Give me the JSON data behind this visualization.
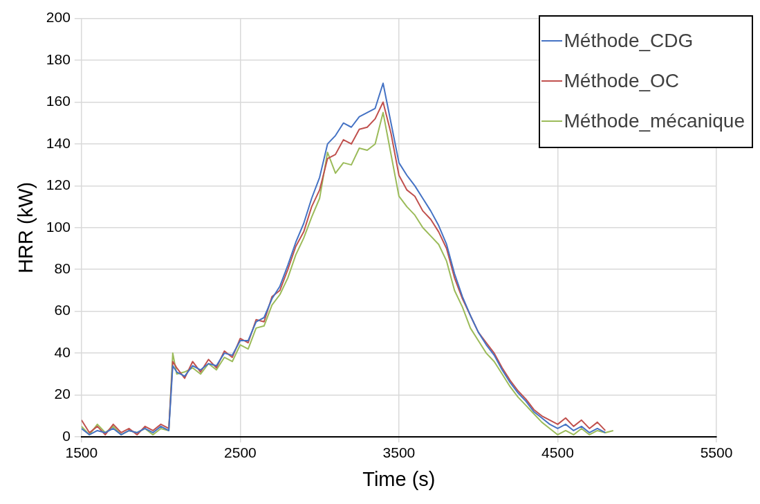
{
  "chart_data": {
    "type": "line",
    "xlabel": "Time (s)",
    "ylabel": "HRR (kW)",
    "x": [
      1500,
      1550,
      1600,
      1650,
      1700,
      1750,
      1800,
      1850,
      1900,
      1950,
      2000,
      2050,
      2075,
      2100,
      2150,
      2200,
      2250,
      2300,
      2350,
      2400,
      2450,
      2500,
      2550,
      2600,
      2650,
      2700,
      2750,
      2800,
      2850,
      2900,
      2950,
      3000,
      3050,
      3100,
      3150,
      3200,
      3250,
      3300,
      3350,
      3400,
      3450,
      3500,
      3550,
      3600,
      3650,
      3700,
      3750,
      3800,
      3850,
      3900,
      3950,
      4000,
      4050,
      4100,
      4150,
      4200,
      4250,
      4300,
      4350,
      4400,
      4450,
      4500,
      4550,
      4600,
      4650,
      4700,
      4750,
      4800,
      4850
    ],
    "series": [
      {
        "name": "Méthode_CDG",
        "color": "#4472c4",
        "values": [
          4,
          1,
          3,
          2,
          4,
          1,
          3,
          2,
          4,
          2,
          5,
          3,
          34,
          31,
          29,
          34,
          32,
          35,
          34,
          40,
          39,
          46,
          46,
          55,
          57,
          66,
          72,
          82,
          93,
          102,
          114,
          124,
          140,
          144,
          150,
          148,
          153,
          155,
          157,
          169,
          150,
          131,
          125,
          120,
          114,
          108,
          101,
          92,
          78,
          67,
          58,
          50,
          44,
          39,
          32,
          26,
          21,
          17,
          12,
          9,
          6,
          4,
          6,
          3,
          5,
          2,
          4,
          2,
          null
        ]
      },
      {
        "name": "Méthode_OC",
        "color": "#c0504d",
        "values": [
          8,
          2,
          5,
          1,
          6,
          2,
          4,
          1,
          5,
          3,
          6,
          4,
          36,
          33,
          28,
          36,
          31,
          37,
          33,
          41,
          38,
          47,
          45,
          56,
          55,
          67,
          70,
          80,
          91,
          98,
          110,
          118,
          133,
          135,
          142,
          140,
          147,
          148,
          152,
          160,
          145,
          125,
          118,
          115,
          108,
          104,
          98,
          90,
          76,
          66,
          58,
          50,
          45,
          40,
          33,
          27,
          22,
          18,
          13,
          10,
          8,
          6,
          9,
          5,
          8,
          4,
          7,
          3,
          null
        ]
      },
      {
        "name": "Méthode_mécanique",
        "color": "#9bbb59",
        "values": [
          5,
          1,
          6,
          2,
          5,
          1,
          3,
          2,
          4,
          1,
          4,
          3,
          40,
          30,
          31,
          33,
          30,
          35,
          32,
          38,
          36,
          44,
          42,
          52,
          53,
          63,
          68,
          76,
          87,
          95,
          105,
          114,
          136,
          126,
          131,
          130,
          138,
          137,
          140,
          155,
          135,
          115,
          110,
          106,
          100,
          96,
          92,
          84,
          70,
          62,
          52,
          46,
          40,
          36,
          30,
          24,
          19,
          15,
          11,
          7,
          4,
          1,
          3,
          1,
          4,
          1,
          3,
          2,
          3
        ]
      }
    ],
    "xlim": [
      1500,
      5500
    ],
    "xticks": [
      1500,
      2500,
      3500,
      4500,
      5500
    ],
    "ylim": [
      0,
      200
    ],
    "yticks": [
      0,
      20,
      40,
      60,
      80,
      100,
      120,
      140,
      160,
      180,
      200
    ],
    "grid": true,
    "legend": "top right",
    "marker": "none",
    "line_style": "solid"
  }
}
